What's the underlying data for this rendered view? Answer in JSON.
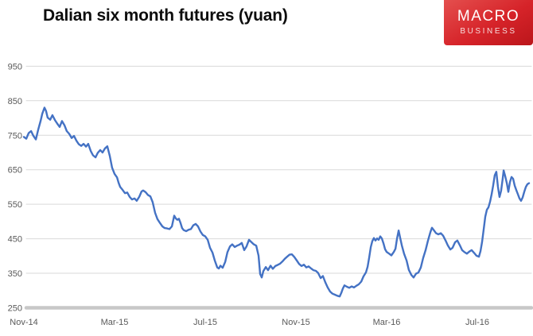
{
  "header": {
    "title": "Dalian six month futures (yuan)",
    "logo": {
      "line1": "MACRO",
      "line2": "BUSINESS",
      "bg_color": "#d62329",
      "text_color": "#ffffff"
    }
  },
  "chart_data": {
    "type": "line",
    "title": "Dalian six month futures (yuan)",
    "xlabel": "",
    "ylabel": "",
    "x_tick_labels": [
      "Nov-14",
      "Mar-15",
      "Jul-15",
      "Nov-15",
      "Mar-16",
      "Jul-16"
    ],
    "x_tick_positions_months": [
      0,
      4,
      8,
      12,
      16,
      20
    ],
    "x_range_months": [
      0,
      22.4
    ],
    "y_ticks": [
      250,
      350,
      450,
      550,
      650,
      750,
      850,
      950
    ],
    "ylim": [
      250,
      975
    ],
    "baseline_tick": 250,
    "grid": "horizontal",
    "legend": "none",
    "colors": {
      "line": "#4472C4",
      "gridline": "#d9d9d9",
      "baseline_bar": "#c8c8c8",
      "axis_text": "#595959"
    },
    "series": [
      {
        "name": "Dalian six month futures (yuan)",
        "points": [
          [
            0.0,
            745
          ],
          [
            0.11,
            740
          ],
          [
            0.21,
            756
          ],
          [
            0.32,
            762
          ],
          [
            0.42,
            748
          ],
          [
            0.53,
            738
          ],
          [
            0.63,
            766
          ],
          [
            0.74,
            792
          ],
          [
            0.81,
            812
          ],
          [
            0.91,
            830
          ],
          [
            0.98,
            820
          ],
          [
            1.05,
            801
          ],
          [
            1.16,
            795
          ],
          [
            1.26,
            808
          ],
          [
            1.37,
            794
          ],
          [
            1.47,
            784
          ],
          [
            1.58,
            774
          ],
          [
            1.68,
            791
          ],
          [
            1.79,
            779
          ],
          [
            1.89,
            762
          ],
          [
            2.0,
            754
          ],
          [
            2.11,
            742
          ],
          [
            2.21,
            748
          ],
          [
            2.32,
            734
          ],
          [
            2.42,
            724
          ],
          [
            2.53,
            719
          ],
          [
            2.63,
            725
          ],
          [
            2.74,
            717
          ],
          [
            2.84,
            725
          ],
          [
            2.95,
            704
          ],
          [
            3.05,
            692
          ],
          [
            3.16,
            686
          ],
          [
            3.26,
            699
          ],
          [
            3.37,
            707
          ],
          [
            3.47,
            700
          ],
          [
            3.58,
            712
          ],
          [
            3.68,
            718
          ],
          [
            3.79,
            690
          ],
          [
            3.89,
            656
          ],
          [
            4.0,
            638
          ],
          [
            4.11,
            628
          ],
          [
            4.18,
            612
          ],
          [
            4.25,
            600
          ],
          [
            4.35,
            592
          ],
          [
            4.46,
            582
          ],
          [
            4.56,
            584
          ],
          [
            4.67,
            571
          ],
          [
            4.77,
            564
          ],
          [
            4.88,
            567
          ],
          [
            4.98,
            560
          ],
          [
            5.09,
            572
          ],
          [
            5.19,
            587
          ],
          [
            5.26,
            590
          ],
          [
            5.37,
            585
          ],
          [
            5.47,
            577
          ],
          [
            5.58,
            573
          ],
          [
            5.68,
            556
          ],
          [
            5.79,
            525
          ],
          [
            5.89,
            507
          ],
          [
            6.0,
            496
          ],
          [
            6.11,
            486
          ],
          [
            6.21,
            481
          ],
          [
            6.32,
            480
          ],
          [
            6.42,
            478
          ],
          [
            6.53,
            486
          ],
          [
            6.63,
            517
          ],
          [
            6.7,
            509
          ],
          [
            6.77,
            505
          ],
          [
            6.84,
            508
          ],
          [
            6.91,
            496
          ],
          [
            6.98,
            481
          ],
          [
            7.05,
            475
          ],
          [
            7.16,
            472
          ],
          [
            7.26,
            476
          ],
          [
            7.37,
            478
          ],
          [
            7.47,
            489
          ],
          [
            7.58,
            493
          ],
          [
            7.68,
            486
          ],
          [
            7.79,
            471
          ],
          [
            7.89,
            461
          ],
          [
            8.0,
            457
          ],
          [
            8.11,
            447
          ],
          [
            8.21,
            424
          ],
          [
            8.32,
            410
          ],
          [
            8.42,
            387
          ],
          [
            8.53,
            367
          ],
          [
            8.6,
            364
          ],
          [
            8.67,
            372
          ],
          [
            8.77,
            366
          ],
          [
            8.88,
            383
          ],
          [
            8.98,
            411
          ],
          [
            9.09,
            428
          ],
          [
            9.19,
            434
          ],
          [
            9.3,
            426
          ],
          [
            9.4,
            430
          ],
          [
            9.51,
            433
          ],
          [
            9.61,
            438
          ],
          [
            9.72,
            417
          ],
          [
            9.82,
            428
          ],
          [
            9.93,
            447
          ],
          [
            10.04,
            440
          ],
          [
            10.14,
            434
          ],
          [
            10.25,
            430
          ],
          [
            10.35,
            401
          ],
          [
            10.42,
            348
          ],
          [
            10.49,
            338
          ],
          [
            10.56,
            356
          ],
          [
            10.67,
            368
          ],
          [
            10.77,
            359
          ],
          [
            10.88,
            372
          ],
          [
            10.98,
            363
          ],
          [
            11.09,
            371
          ],
          [
            11.19,
            374
          ],
          [
            11.3,
            378
          ],
          [
            11.4,
            384
          ],
          [
            11.51,
            392
          ],
          [
            11.61,
            398
          ],
          [
            11.72,
            404
          ],
          [
            11.82,
            405
          ],
          [
            11.93,
            397
          ],
          [
            12.04,
            387
          ],
          [
            12.14,
            377
          ],
          [
            12.25,
            371
          ],
          [
            12.35,
            375
          ],
          [
            12.46,
            367
          ],
          [
            12.56,
            370
          ],
          [
            12.67,
            364
          ],
          [
            12.77,
            359
          ],
          [
            12.88,
            357
          ],
          [
            12.98,
            351
          ],
          [
            13.09,
            336
          ],
          [
            13.19,
            342
          ],
          [
            13.3,
            323
          ],
          [
            13.4,
            309
          ],
          [
            13.51,
            297
          ],
          [
            13.61,
            291
          ],
          [
            13.72,
            288
          ],
          [
            13.82,
            285
          ],
          [
            13.93,
            283
          ],
          [
            14.0,
            293
          ],
          [
            14.07,
            306
          ],
          [
            14.14,
            315
          ],
          [
            14.25,
            311
          ],
          [
            14.35,
            308
          ],
          [
            14.46,
            312
          ],
          [
            14.56,
            309
          ],
          [
            14.67,
            314
          ],
          [
            14.77,
            318
          ],
          [
            14.88,
            326
          ],
          [
            14.98,
            341
          ],
          [
            15.09,
            353
          ],
          [
            15.16,
            369
          ],
          [
            15.23,
            396
          ],
          [
            15.3,
            426
          ],
          [
            15.37,
            443
          ],
          [
            15.44,
            452
          ],
          [
            15.51,
            445
          ],
          [
            15.58,
            451
          ],
          [
            15.65,
            447
          ],
          [
            15.72,
            457
          ],
          [
            15.79,
            451
          ],
          [
            15.86,
            437
          ],
          [
            15.93,
            420
          ],
          [
            16.0,
            412
          ],
          [
            16.11,
            407
          ],
          [
            16.21,
            402
          ],
          [
            16.32,
            412
          ],
          [
            16.39,
            421
          ],
          [
            16.46,
            451
          ],
          [
            16.53,
            474
          ],
          [
            16.6,
            452
          ],
          [
            16.67,
            431
          ],
          [
            16.77,
            407
          ],
          [
            16.88,
            387
          ],
          [
            16.98,
            360
          ],
          [
            17.09,
            345
          ],
          [
            17.19,
            338
          ],
          [
            17.3,
            349
          ],
          [
            17.4,
            352
          ],
          [
            17.51,
            367
          ],
          [
            17.61,
            394
          ],
          [
            17.72,
            417
          ],
          [
            17.82,
            444
          ],
          [
            17.93,
            469
          ],
          [
            18.0,
            482
          ],
          [
            18.07,
            476
          ],
          [
            18.18,
            466
          ],
          [
            18.28,
            463
          ],
          [
            18.39,
            466
          ],
          [
            18.49,
            459
          ],
          [
            18.6,
            445
          ],
          [
            18.7,
            431
          ],
          [
            18.81,
            419
          ],
          [
            18.91,
            424
          ],
          [
            19.02,
            440
          ],
          [
            19.12,
            445
          ],
          [
            19.23,
            431
          ],
          [
            19.33,
            417
          ],
          [
            19.44,
            411
          ],
          [
            19.54,
            407
          ],
          [
            19.65,
            413
          ],
          [
            19.75,
            417
          ],
          [
            19.86,
            409
          ],
          [
            19.96,
            401
          ],
          [
            20.07,
            398
          ],
          [
            20.14,
            414
          ],
          [
            20.21,
            441
          ],
          [
            20.28,
            477
          ],
          [
            20.35,
            514
          ],
          [
            20.42,
            534
          ],
          [
            20.49,
            541
          ],
          [
            20.56,
            557
          ],
          [
            20.63,
            579
          ],
          [
            20.7,
            604
          ],
          [
            20.77,
            634
          ],
          [
            20.84,
            644
          ],
          [
            20.91,
            601
          ],
          [
            20.98,
            571
          ],
          [
            21.05,
            589
          ],
          [
            21.12,
            624
          ],
          [
            21.16,
            648
          ],
          [
            21.23,
            631
          ],
          [
            21.3,
            611
          ],
          [
            21.37,
            586
          ],
          [
            21.44,
            614
          ],
          [
            21.51,
            629
          ],
          [
            21.58,
            624
          ],
          [
            21.65,
            604
          ],
          [
            21.72,
            591
          ],
          [
            21.79,
            579
          ],
          [
            21.86,
            567
          ],
          [
            21.93,
            560
          ],
          [
            22.0,
            570
          ],
          [
            22.07,
            586
          ],
          [
            22.14,
            600
          ],
          [
            22.21,
            608
          ],
          [
            22.28,
            611
          ]
        ]
      }
    ]
  }
}
